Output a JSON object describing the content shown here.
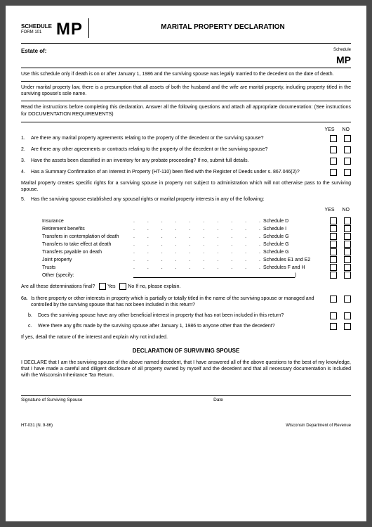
{
  "header": {
    "schedule": "SCHEDULE",
    "form": "FORM 101",
    "code": "MP",
    "title": "MARITAL PROPERTY DECLARATION",
    "right_label": "Schedule",
    "right_code": "MP"
  },
  "estate_label": "Estate of:",
  "para1": "Use this schedule only if death is on or after January 1, 1986 and the surviving spouse was legally married to the decedent on the date of death.",
  "para2": "Under marital property law, there is a presumption that all assets of both the husband and the wife are marital property, including property titled in the surviving spouse's sole name.",
  "para3a": "Read the instructions before completing this declaration. Answer all the following questions and attach all appropriate documentation: (See instructions for DOCUMENTATION REQUIREMENTS)",
  "yes": "YES",
  "no": "NO",
  "q1": "Are there any marital property agreements relating to the property of the decedent or the surviving spouse?",
  "q2": "Are there any other agreements or contracts relating to the property of the decedent or the surviving spouse?",
  "q3": "Have the assets been classified in an inventory for any probate proceeding? If no, submit full details.",
  "q4": "Has a Summary Confirmation of an Interest in Property (HT-110) been filed with the Register of Deeds under s. 867.046(2)?",
  "para4": "Marital property creates specific rights for a surviving spouse in property not subject to administration which will not otherwise pass to the surviving spouse.",
  "q5": "Has the surviving spouse established any spousal rights or marital property interests in any of the following:",
  "items": [
    {
      "label": "Insurance",
      "schedule": "Schedule D"
    },
    {
      "label": "Retirement benefits",
      "schedule": "Schedule I"
    },
    {
      "label": "Transfers in contemplation of death",
      "schedule": "Schedule G"
    },
    {
      "label": "Transfers to take effect at death",
      "schedule": "Schedule G"
    },
    {
      "label": "Transfers payable on death",
      "schedule": "Schedule G"
    },
    {
      "label": "Joint property",
      "schedule": "Schedules E1 and E2"
    },
    {
      "label": "Trusts",
      "schedule": "Schedules F and H"
    }
  ],
  "other_label": "Other (specify:",
  "final_label": "Are all these determinations final?",
  "final_yes": "Yes",
  "final_no": "No   If no, please explain.",
  "q6a_num": "6a.",
  "q6a": "Is there property or other interests in property which is partially or totally titled in the name of the surviving spouse or managed and controlled by the surviving spouse that has not been included in this return?",
  "q6b_num": "b.",
  "q6b": "Does the surviving spouse have any other beneficial interest in property that has not been included in this return?",
  "q6c_num": "c.",
  "q6c": "Were there any gifts made by the surviving spouse after January 1, 1986 to anyone other than the decedent?",
  "ifyes": "If yes, detail the nature of the interest and explain why not included.",
  "decl_title": "DECLARATION OF SURVIVING SPOUSE",
  "decl_text": "I DECLARE that I am the surviving spouse of the above named decedent, that I have answered all of the above questions to the best of my knowledge, that I have made a careful and diligent disclosure of all property owned by myself and the decedent and that all necessary documentation is included with the Wisconsin Inheritance Tax Return.",
  "sig_label": "Signature of Surviving Spouse",
  "date_label": "Date",
  "footer_left": "HT-031 (N. 9-86)",
  "footer_right": "Wisconsin Department of Revenue"
}
